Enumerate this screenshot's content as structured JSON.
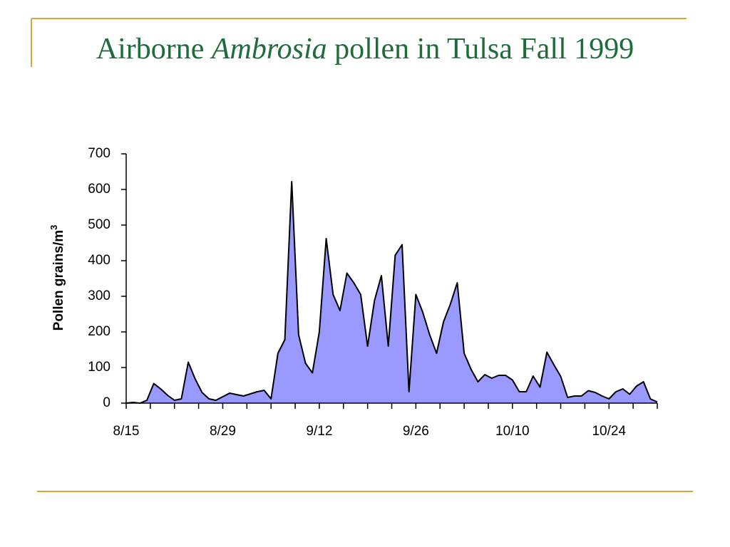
{
  "chart_data": {
    "type": "area",
    "title": {
      "before": "Airborne",
      "italic": "Ambrosia",
      "after": "pollen in Tulsa Fall 1999"
    },
    "ylabel": "Pollen grains/m",
    "ylabel_sup": "3",
    "x": [
      0,
      1,
      2,
      3,
      4,
      5,
      6,
      7,
      8,
      9,
      10,
      11,
      12,
      13,
      14,
      15,
      16,
      17,
      18,
      19,
      20,
      21,
      22,
      23,
      24,
      25,
      26,
      27,
      28,
      29,
      30,
      31,
      32,
      33,
      34,
      35,
      36,
      37,
      38,
      39,
      40,
      41,
      42,
      43,
      44,
      45,
      46,
      47,
      48,
      49,
      50,
      51,
      52,
      53,
      54,
      55,
      56,
      57,
      58,
      59,
      60,
      61,
      62,
      63,
      64,
      65,
      66,
      67,
      68,
      69,
      70,
      71,
      72,
      73,
      74,
      75,
      76,
      77
    ],
    "values": [
      0,
      2,
      0,
      8,
      55,
      40,
      22,
      8,
      12,
      115,
      68,
      30,
      12,
      8,
      18,
      28,
      24,
      20,
      26,
      32,
      36,
      12,
      140,
      178,
      622,
      192,
      112,
      85,
      200,
      462,
      305,
      260,
      365,
      338,
      305,
      160,
      288,
      358,
      160,
      415,
      445,
      32,
      305,
      255,
      192,
      140,
      228,
      278,
      338,
      140,
      95,
      60,
      80,
      70,
      78,
      78,
      65,
      32,
      32,
      76,
      45,
      143,
      108,
      75,
      16,
      20,
      20,
      35,
      30,
      20,
      12,
      32,
      40,
      25,
      48,
      60,
      12,
      3
    ],
    "color": "#9999ff",
    "xlim": [
      0,
      77
    ],
    "xticks": [
      {
        "value": 0,
        "label": "8/15"
      },
      {
        "value": 14,
        "label": "8/29"
      },
      {
        "value": 28,
        "label": "9/12"
      },
      {
        "value": 42,
        "label": "9/26"
      },
      {
        "value": 56,
        "label": "10/10"
      },
      {
        "value": 70,
        "label": "10/24"
      }
    ],
    "xminorticks": [
      3.5,
      7,
      10.5,
      17.5,
      21,
      24.5,
      31.5,
      35,
      38.5,
      45.5,
      49,
      52.5,
      59.5,
      63,
      66.5,
      73.5,
      77
    ],
    "ylim": [
      0,
      700
    ],
    "yticks": [
      0,
      100,
      200,
      300,
      400,
      500,
      600,
      700
    ]
  }
}
